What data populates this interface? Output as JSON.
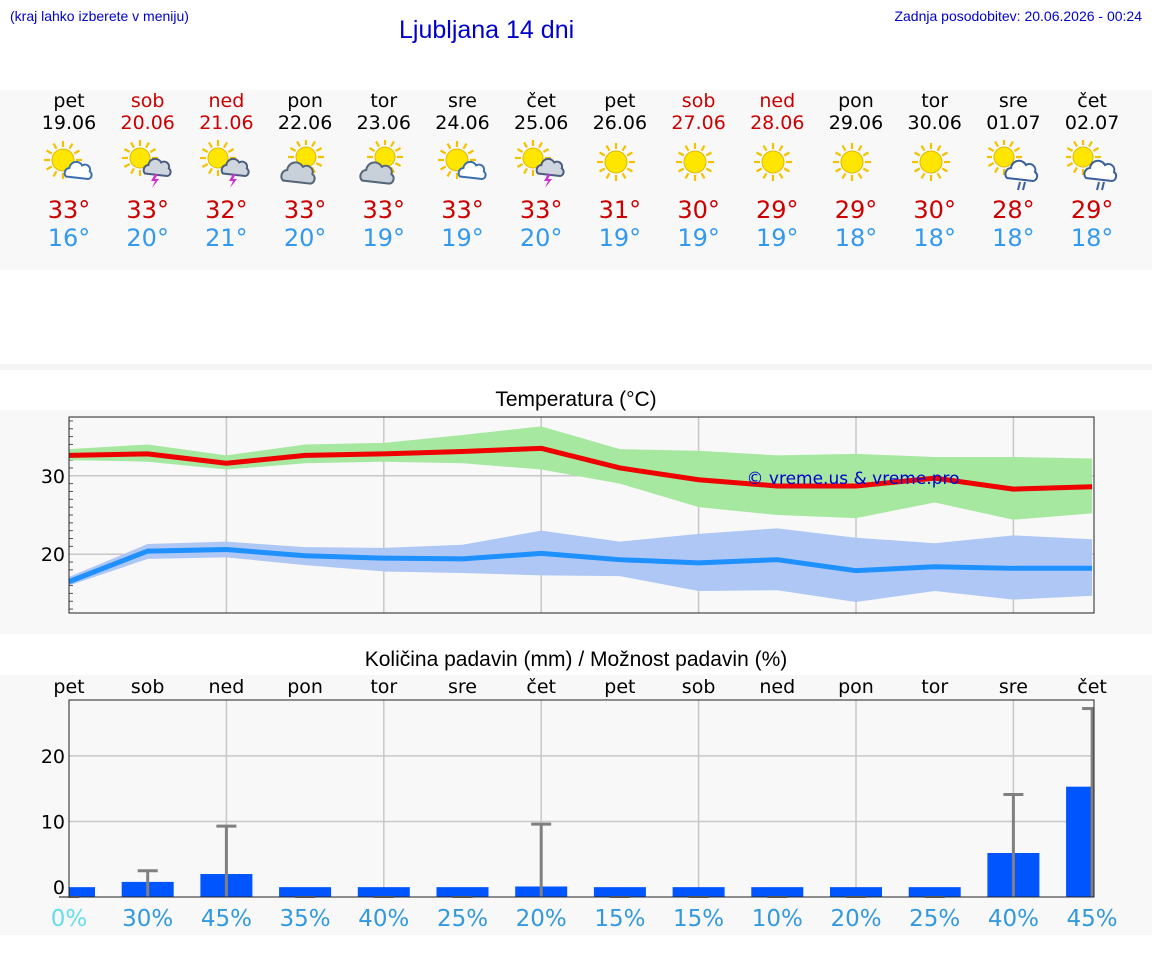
{
  "header": {
    "hint": "(kraj lahko izberete v meniju)",
    "title": "Ljubljana 14 dni",
    "updated": "Zadnja posodobitev: 20.06.2026 - 00:24"
  },
  "days": [
    {
      "name": "pet",
      "date": "19.06",
      "weekend": false,
      "icon": "sun-cloud-icon",
      "max": "33°",
      "min": "16°"
    },
    {
      "name": "sob",
      "date": "20.06",
      "weekend": true,
      "icon": "sun-storm-icon",
      "max": "33°",
      "min": "20°"
    },
    {
      "name": "ned",
      "date": "21.06",
      "weekend": true,
      "icon": "sun-storm-icon",
      "max": "32°",
      "min": "21°"
    },
    {
      "name": "pon",
      "date": "22.06",
      "weekend": false,
      "icon": "partly-cloudy-icon",
      "max": "33°",
      "min": "20°"
    },
    {
      "name": "tor",
      "date": "23.06",
      "weekend": false,
      "icon": "partly-cloudy-icon",
      "max": "33°",
      "min": "19°"
    },
    {
      "name": "sre",
      "date": "24.06",
      "weekend": false,
      "icon": "sun-cloud-icon",
      "max": "33°",
      "min": "19°"
    },
    {
      "name": "čet",
      "date": "25.06",
      "weekend": false,
      "icon": "sun-storm-icon",
      "max": "33°",
      "min": "20°"
    },
    {
      "name": "pet",
      "date": "26.06",
      "weekend": false,
      "icon": "sun-icon",
      "max": "31°",
      "min": "19°"
    },
    {
      "name": "sob",
      "date": "27.06",
      "weekend": true,
      "icon": "sun-icon",
      "max": "30°",
      "min": "19°"
    },
    {
      "name": "ned",
      "date": "28.06",
      "weekend": true,
      "icon": "sun-icon",
      "max": "29°",
      "min": "19°"
    },
    {
      "name": "pon",
      "date": "29.06",
      "weekend": false,
      "icon": "sun-icon",
      "max": "29°",
      "min": "18°"
    },
    {
      "name": "tor",
      "date": "30.06",
      "weekend": false,
      "icon": "sun-icon",
      "max": "30°",
      "min": "18°"
    },
    {
      "name": "sre",
      "date": "01.07",
      "weekend": false,
      "icon": "sun-rain-icon",
      "max": "28°",
      "min": "18°"
    },
    {
      "name": "čet",
      "date": "02.07",
      "weekend": false,
      "icon": "sun-rain-icon",
      "max": "29°",
      "min": "18°"
    }
  ],
  "chart_data": [
    {
      "type": "line",
      "title": "Temperatura (°C)",
      "watermark": "© vreme.us & vreme.pro",
      "categories": [
        "19.06",
        "20.06",
        "21.06",
        "22.06",
        "23.06",
        "24.06",
        "25.06",
        "26.06",
        "27.06",
        "28.06",
        "29.06",
        "30.06",
        "01.07",
        "02.07"
      ],
      "yticks": [
        20,
        30
      ],
      "ylim": [
        12.5,
        37.5
      ],
      "series": [
        {
          "kind": "max",
          "color": "#ee0000",
          "band_color": "#a6e8a0",
          "values": [
            32.6,
            32.8,
            31.6,
            32.6,
            32.8,
            33.1,
            33.5,
            31.0,
            29.5,
            28.7,
            28.7,
            29.7,
            28.3,
            28.6
          ],
          "low": [
            32.0,
            31.8,
            30.8,
            31.6,
            31.8,
            31.6,
            30.8,
            29.0,
            26.0,
            25.0,
            24.6,
            26.6,
            24.4,
            25.2
          ],
          "high": [
            33.4,
            34.0,
            32.6,
            34.0,
            34.2,
            35.2,
            36.3,
            33.4,
            33.2,
            32.6,
            32.8,
            32.4,
            32.4,
            32.2
          ]
        },
        {
          "kind": "min",
          "color": "#1e90ff",
          "band_color": "#aec7f5",
          "values": [
            16.5,
            20.4,
            20.6,
            19.8,
            19.5,
            19.4,
            20.1,
            19.3,
            18.9,
            19.3,
            17.9,
            18.4,
            18.2,
            18.2
          ],
          "low": [
            16.0,
            19.4,
            19.6,
            18.6,
            17.8,
            17.6,
            17.3,
            17.2,
            15.3,
            15.4,
            13.9,
            15.3,
            14.2,
            14.7
          ],
          "high": [
            17.1,
            21.3,
            21.6,
            20.9,
            20.8,
            21.2,
            23.0,
            21.6,
            22.6,
            23.3,
            22.1,
            21.4,
            22.4,
            21.9
          ]
        }
      ]
    },
    {
      "type": "bar",
      "title": "Količina padavin (mm) / Možnost padavin (%)",
      "categories": [
        "pet",
        "sob",
        "ned",
        "pon",
        "tor",
        "sre",
        "čet",
        "pet",
        "sob",
        "ned",
        "pon",
        "tor",
        "sre",
        "čet"
      ],
      "yticks": [
        0,
        10,
        20
      ],
      "ylim": [
        -1.5,
        28.5
      ],
      "values": [
        0,
        0.8,
        2.0,
        0,
        0,
        0,
        0.1,
        0,
        0,
        0,
        0,
        0,
        5.2,
        15.3
      ],
      "err_high": [
        0,
        2.5,
        9.3,
        0,
        0,
        0,
        9.6,
        0,
        0,
        0,
        0,
        0,
        14.1,
        27.2
      ],
      "probability": [
        "0%",
        "30%",
        "45%",
        "35%",
        "40%",
        "25%",
        "20%",
        "15%",
        "15%",
        "10%",
        "20%",
        "25%",
        "40%",
        "45%"
      ],
      "bar_color": "#0055ff",
      "err_color": "#808080"
    }
  ]
}
